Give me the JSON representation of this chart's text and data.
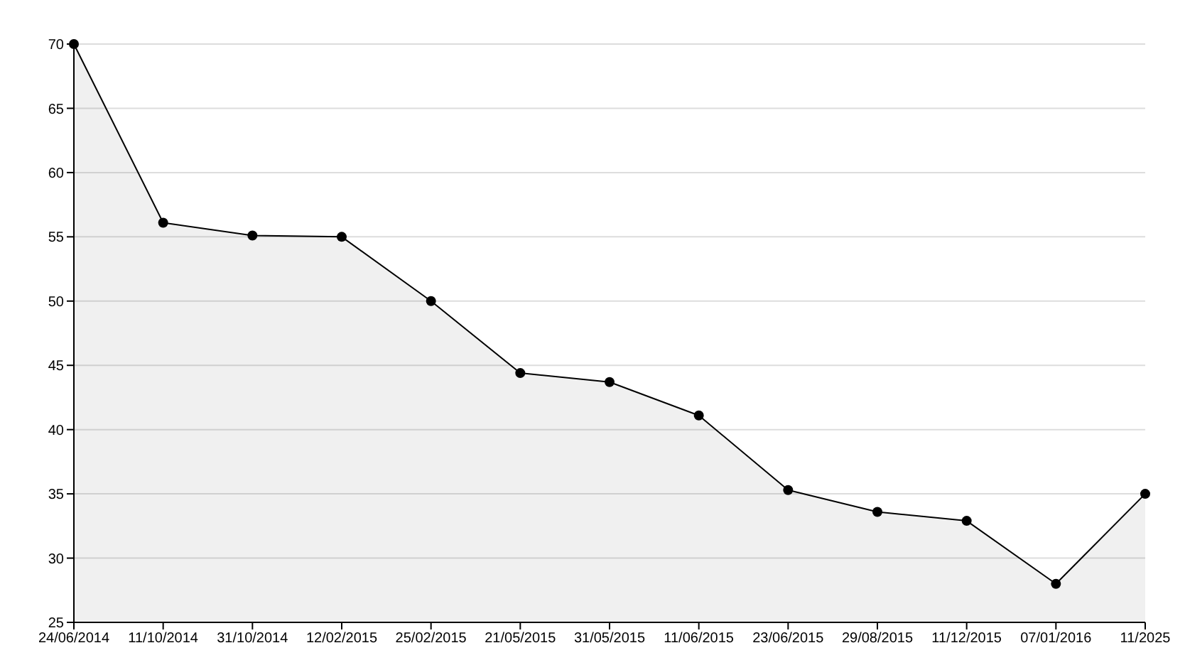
{
  "chart_data": {
    "type": "area",
    "categories": [
      "24/06/2014",
      "11/10/2014",
      "31/10/2014",
      "12/02/2015",
      "25/02/2015",
      "21/05/2015",
      "31/05/2015",
      "11/06/2015",
      "23/06/2015",
      "29/08/2015",
      "11/12/2015",
      "07/01/2016",
      "11/2025"
    ],
    "series": [
      {
        "color": "#000000",
        "values": [
          70,
          56.1,
          55.1,
          55,
          50,
          44.4,
          43.7,
          41.1,
          35.3,
          33.6,
          32.9,
          28,
          35
        ]
      }
    ],
    "ylim": [
      25,
      70
    ],
    "yticks": [
      25,
      30,
      35,
      40,
      45,
      50,
      55,
      60,
      65,
      70
    ],
    "grid": "y",
    "marker": "circle",
    "line_style": "solid"
  }
}
